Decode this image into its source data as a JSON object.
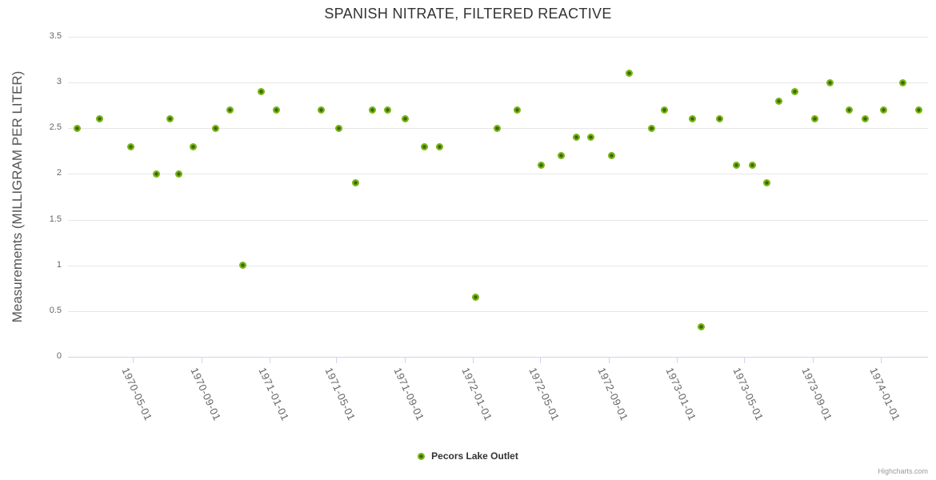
{
  "title": "SPANISH NITRATE, FILTERED REACTIVE",
  "y_axis": {
    "title": "Measurements (MILLIGRAM PER LITER)",
    "tick_labels": [
      "0",
      "0.5",
      "1",
      "1.5",
      "2",
      "2.5",
      "3",
      "3.5"
    ]
  },
  "x_axis": {
    "tick_labels": [
      "1970-05-01",
      "1970-09-01",
      "1971-01-01",
      "1971-05-01",
      "1971-09-01",
      "1972-01-01",
      "1972-05-01",
      "1972-09-01",
      "1973-01-01",
      "1973-05-01",
      "1973-09-01",
      "1974-01-01"
    ]
  },
  "legend": {
    "series_label": "Pecors Lake Outlet"
  },
  "credit": "Highcharts.com",
  "colors": {
    "marker_ring": "#7cb414",
    "marker_core": "#356a06",
    "grid_line": "#e6e6e6",
    "axis_line": "#ccd6eb",
    "tick_label": "#666666",
    "title_text": "#333333"
  },
  "chart_data": {
    "type": "scatter",
    "title": "SPANISH NITRATE, FILTERED REACTIVE",
    "xlabel": "",
    "ylabel": "Measurements (MILLIGRAM PER LITER)",
    "ylim": [
      0,
      3.5
    ],
    "y_ticks": [
      0,
      0.5,
      1,
      1.5,
      2,
      2.5,
      3,
      3.5
    ],
    "x_range": [
      "1970-01-05",
      "1974-03-27"
    ],
    "x_tick_dates": [
      "1970-05-01",
      "1970-09-01",
      "1971-01-01",
      "1971-05-01",
      "1971-09-01",
      "1972-01-01",
      "1972-05-01",
      "1972-09-01",
      "1973-01-01",
      "1973-05-01",
      "1973-09-01",
      "1974-01-01"
    ],
    "grid": true,
    "legend_position": "bottom-center",
    "series": [
      {
        "name": "Pecors Lake Outlet",
        "points": [
          {
            "date": "1970-01-21",
            "value": 2.5
          },
          {
            "date": "1970-03-02",
            "value": 2.6
          },
          {
            "date": "1970-04-27",
            "value": 2.3
          },
          {
            "date": "1970-06-13",
            "value": 2.0
          },
          {
            "date": "1970-07-07",
            "value": 2.6
          },
          {
            "date": "1970-07-22",
            "value": 2.0
          },
          {
            "date": "1970-08-18",
            "value": 2.3
          },
          {
            "date": "1970-09-26",
            "value": 2.5
          },
          {
            "date": "1970-10-23",
            "value": 2.7
          },
          {
            "date": "1970-11-15",
            "value": 1.0
          },
          {
            "date": "1970-12-18",
            "value": 2.9
          },
          {
            "date": "1971-01-14",
            "value": 2.7
          },
          {
            "date": "1971-04-04",
            "value": 2.7
          },
          {
            "date": "1971-05-05",
            "value": 2.5
          },
          {
            "date": "1971-06-04",
            "value": 1.9
          },
          {
            "date": "1971-07-05",
            "value": 2.7
          },
          {
            "date": "1971-08-01",
            "value": 2.7
          },
          {
            "date": "1971-09-01",
            "value": 2.6
          },
          {
            "date": "1971-10-06",
            "value": 2.3
          },
          {
            "date": "1971-11-02",
            "value": 2.3
          },
          {
            "date": "1972-01-06",
            "value": 0.65
          },
          {
            "date": "1972-02-14",
            "value": 2.5
          },
          {
            "date": "1972-03-20",
            "value": 2.7
          },
          {
            "date": "1972-05-02",
            "value": 2.1
          },
          {
            "date": "1972-06-07",
            "value": 2.2
          },
          {
            "date": "1972-07-04",
            "value": 2.4
          },
          {
            "date": "1972-07-31",
            "value": 2.4
          },
          {
            "date": "1972-09-05",
            "value": 2.2
          },
          {
            "date": "1972-10-07",
            "value": 3.1
          },
          {
            "date": "1972-11-16",
            "value": 2.5
          },
          {
            "date": "1972-12-10",
            "value": 2.7
          },
          {
            "date": "1973-01-28",
            "value": 2.6
          },
          {
            "date": "1973-02-13",
            "value": 0.33
          },
          {
            "date": "1973-03-18",
            "value": 2.6
          },
          {
            "date": "1973-04-17",
            "value": 2.1
          },
          {
            "date": "1973-05-16",
            "value": 2.1
          },
          {
            "date": "1973-06-11",
            "value": 1.9
          },
          {
            "date": "1973-07-02",
            "value": 2.8
          },
          {
            "date": "1973-07-31",
            "value": 2.9
          },
          {
            "date": "1973-09-05",
            "value": 2.6
          },
          {
            "date": "1973-10-02",
            "value": 3.0
          },
          {
            "date": "1973-11-05",
            "value": 2.7
          },
          {
            "date": "1973-12-04",
            "value": 2.6
          },
          {
            "date": "1974-01-07",
            "value": 2.7
          },
          {
            "date": "1974-02-10",
            "value": 3.0
          },
          {
            "date": "1974-03-11",
            "value": 2.7
          }
        ]
      }
    ]
  }
}
